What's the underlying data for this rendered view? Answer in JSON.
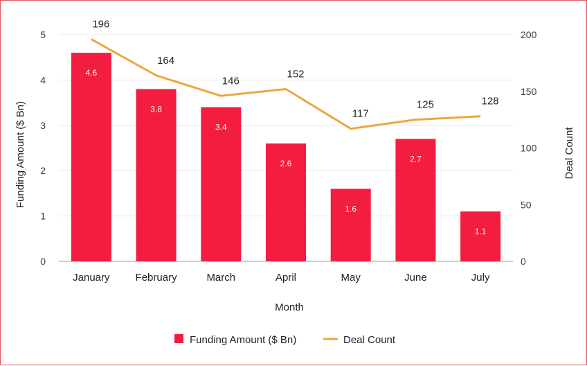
{
  "chart_data": {
    "type": "bar",
    "combo": "bar+line",
    "categories": [
      "January",
      "February",
      "March",
      "April",
      "May",
      "June",
      "July"
    ],
    "series": [
      {
        "name": "Funding Amount ($ Bn)",
        "type": "bar",
        "axis": "left",
        "values": [
          4.6,
          3.8,
          3.4,
          2.6,
          1.6,
          2.7,
          1.1
        ],
        "data_labels": [
          "4.6",
          "3.8",
          "3.4",
          "2.6",
          "1.6",
          "2.7",
          "1.1"
        ]
      },
      {
        "name": "Deal Count",
        "type": "line",
        "axis": "right",
        "values": [
          196,
          164,
          146,
          152,
          117,
          125,
          128
        ],
        "data_labels": [
          "196",
          "164",
          "146",
          "152",
          "117",
          "125",
          "128"
        ]
      }
    ],
    "xlabel": "Month",
    "ylabel": "Funding Amount ($ Bn)",
    "y2label": "Deal Count",
    "ylim": [
      0,
      5
    ],
    "y2lim": [
      0,
      200
    ],
    "yticks": [
      "0",
      "1",
      "2",
      "3",
      "4",
      "5"
    ],
    "y2ticks": [
      "0",
      "50",
      "100",
      "150",
      "200"
    ],
    "grid": true,
    "legend": "bottom-center",
    "colors": {
      "bar": "#f21d3f",
      "line": "#eda640",
      "grid": "#e6e6e6"
    }
  }
}
